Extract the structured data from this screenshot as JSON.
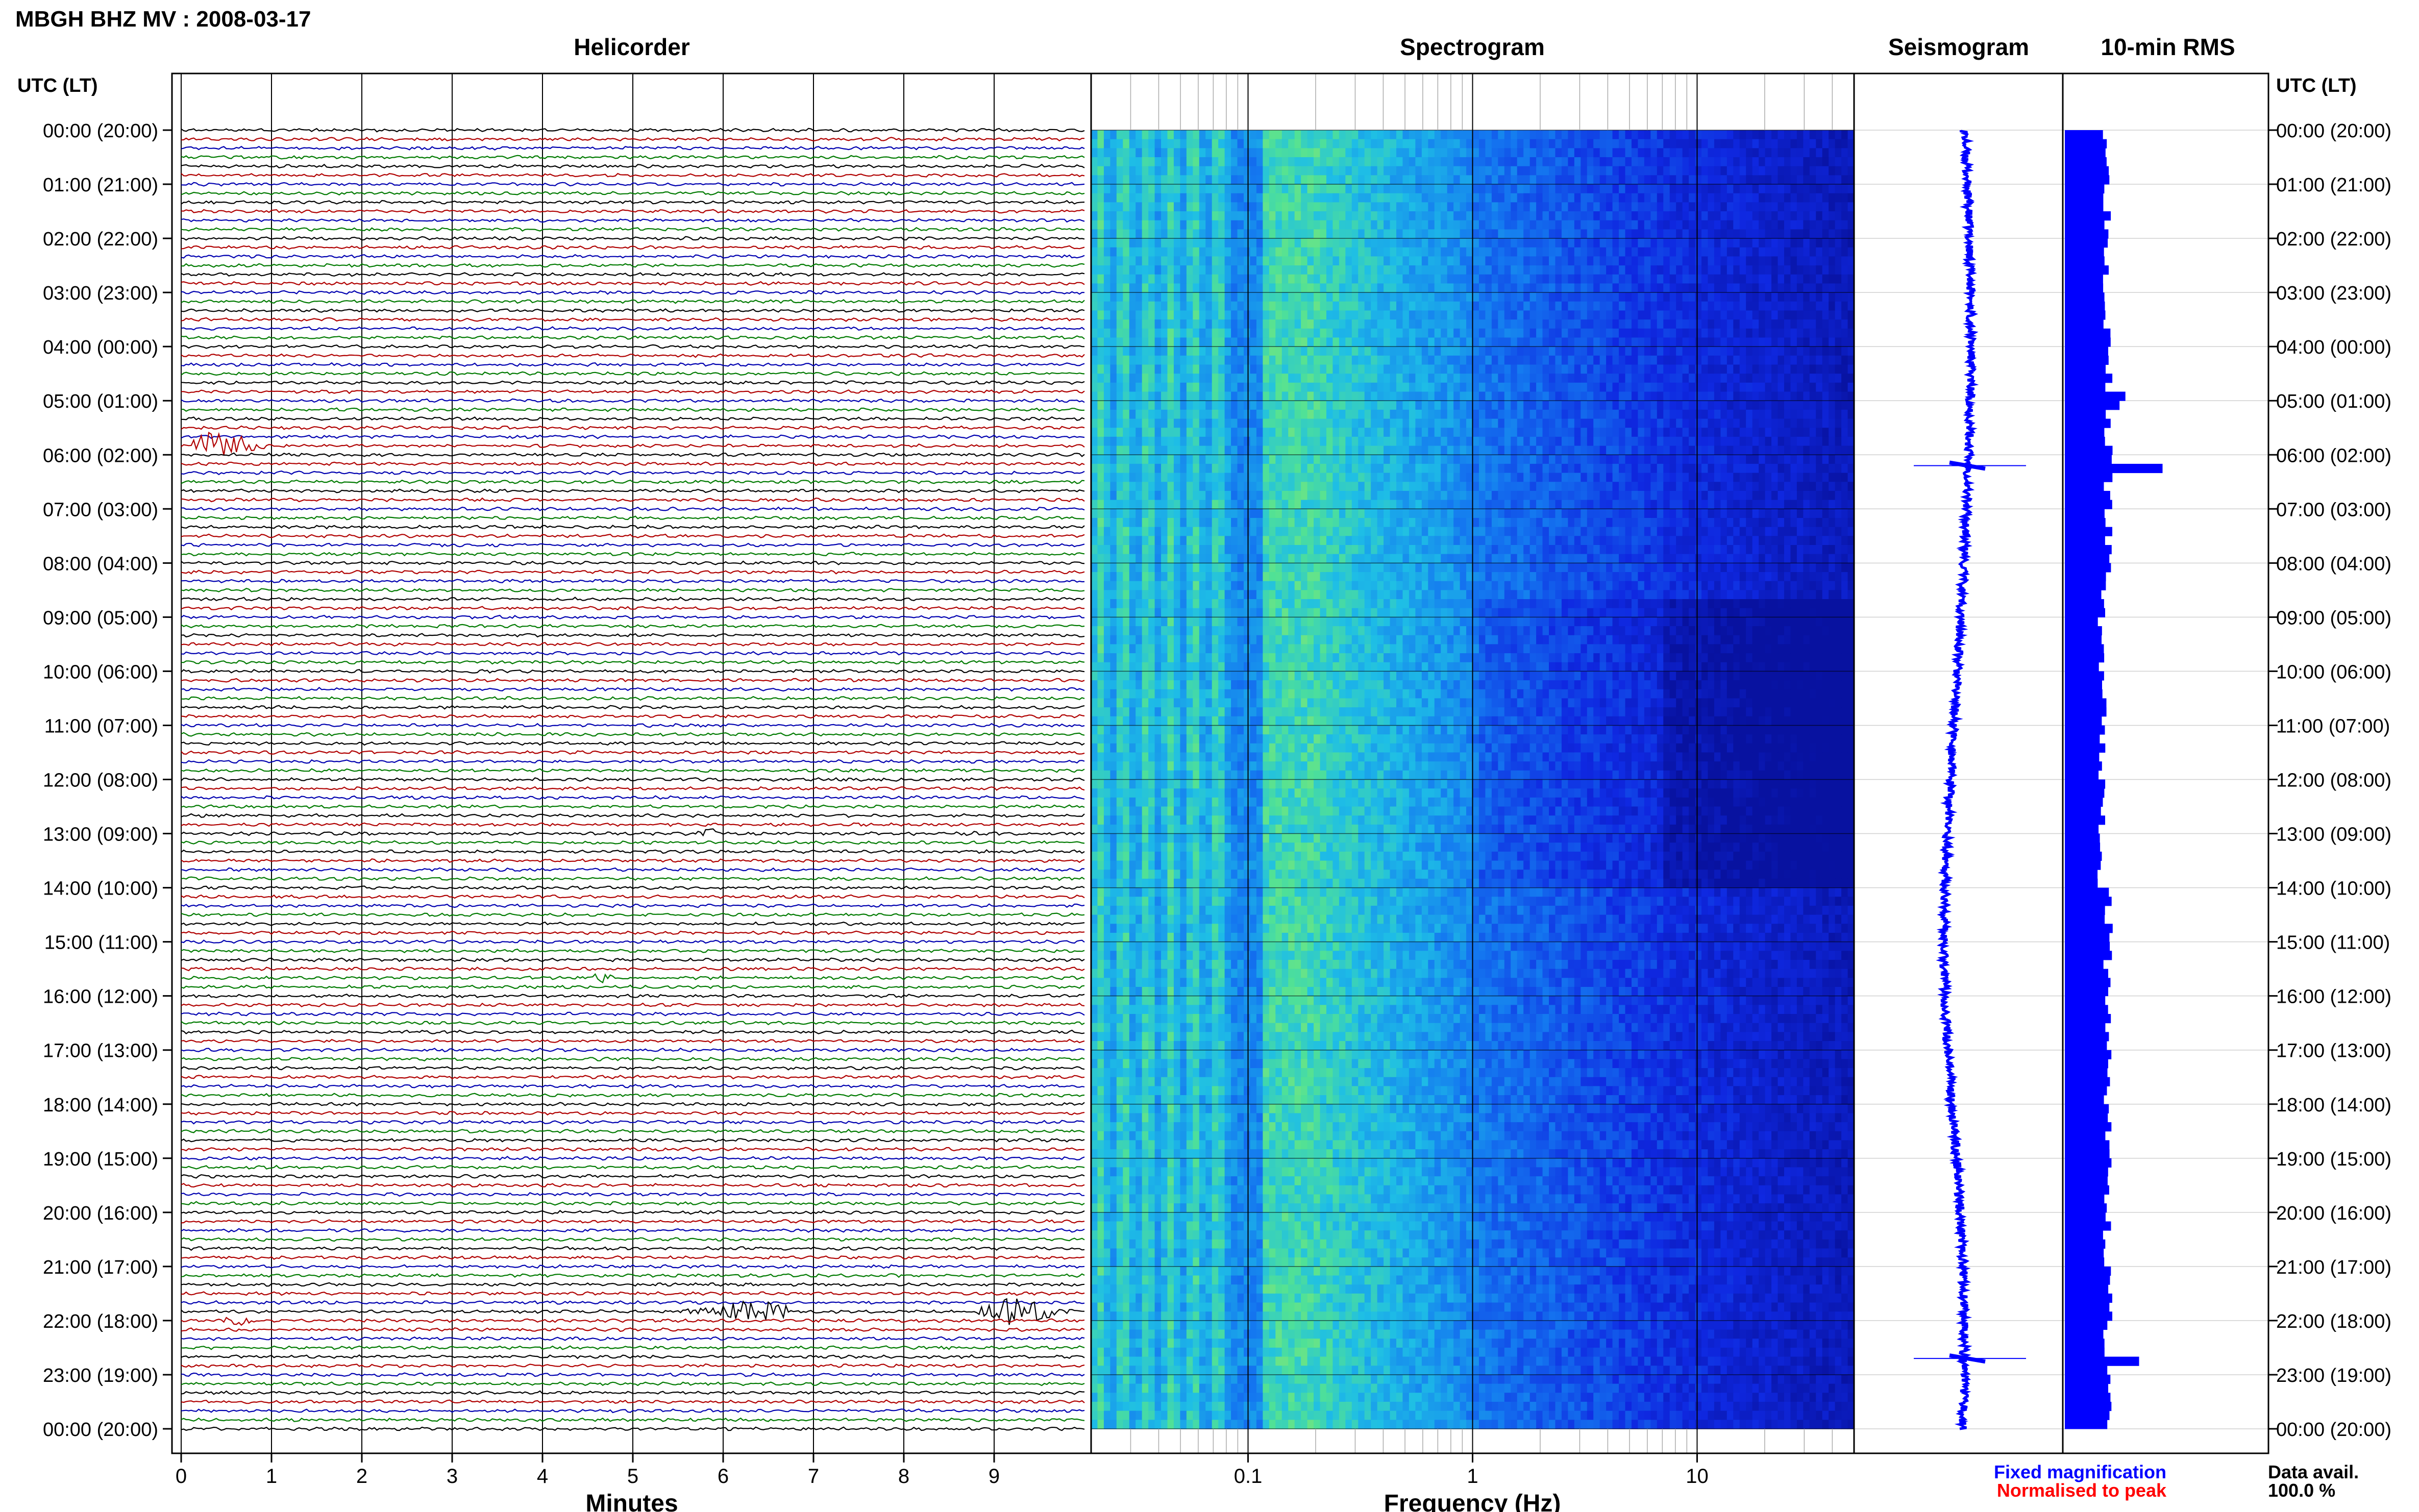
{
  "header": {
    "station_title": "MBGH BHZ MV : 2008-03-17"
  },
  "panel_titles": {
    "helicorder": "Helicorder",
    "spectrogram": "Spectrogram",
    "seismogram": "Seismogram",
    "rms": "10-min RMS"
  },
  "axis_labels": {
    "time_left": "UTC (LT)",
    "time_right": "UTC (LT)",
    "minutes": "Minutes",
    "frequency": "Frequency (Hz)"
  },
  "footer": {
    "fixed_magnification": "Fixed magnification",
    "normalised_to_peak": "Normalised to peak",
    "data_avail_label": "Data avail.",
    "data_avail_value": "100.0 %"
  },
  "colors": {
    "trace_cycle": [
      "#000000",
      "#b00000",
      "#0000b0",
      "#007a00"
    ],
    "seismogram": "#0000ff",
    "rms_bars": "#0000ff",
    "fixed_magnification_text": "#0000ff",
    "normalised_text": "#ff0000",
    "spectro_high": "#19e3c8",
    "spectro_mid": "#1aa3ee",
    "spectro_low": "#0a1fd0"
  },
  "chart_data": [
    {
      "type": "line",
      "name": "helicorder",
      "title": "Helicorder",
      "xlabel": "Minutes",
      "x_ticks": [
        0,
        1,
        2,
        3,
        4,
        5,
        6,
        7,
        8,
        9
      ],
      "xlim": [
        0,
        10
      ],
      "y_tick_labels": [
        "00:00 (20:00)",
        "01:00 (21:00)",
        "02:00 (22:00)",
        "03:00 (23:00)",
        "04:00 (00:00)",
        "05:00 (01:00)",
        "06:00 (02:00)",
        "07:00 (03:00)",
        "08:00 (04:00)",
        "09:00 (05:00)",
        "10:00 (06:00)",
        "11:00 (07:00)",
        "12:00 (08:00)",
        "13:00 (09:00)",
        "14:00 (10:00)",
        "15:00 (11:00)",
        "16:00 (12:00)",
        "17:00 (13:00)",
        "18:00 (14:00)",
        "19:00 (15:00)",
        "20:00 (16:00)",
        "21:00 (17:00)",
        "22:00 (18:00)",
        "23:00 (19:00)",
        "00:00 (20:00)"
      ],
      "lines_per_hour": 6,
      "total_lines": 144,
      "events": [
        {
          "line": 35,
          "start_min": 0.1,
          "end_min": 1.0,
          "peak_min": 0.45,
          "amplitude": 1.0,
          "color": "#b00000"
        },
        {
          "line": 131,
          "start_min": 5.2,
          "end_min": 6.7,
          "peak_min": 6.35,
          "amplitude": 0.7,
          "color": "#000000"
        },
        {
          "line": 131,
          "start_min": 8.7,
          "end_min": 9.9,
          "peak_min": 9.3,
          "amplitude": 0.8,
          "color": "#000000"
        },
        {
          "line": 132,
          "start_min": 0.4,
          "end_min": 1.0,
          "peak_min": 0.6,
          "amplitude": 0.25,
          "color": "#b00000"
        },
        {
          "line": 78,
          "start_min": 5.5,
          "end_min": 6.0,
          "peak_min": 5.8,
          "amplitude": 0.25,
          "color": "#000000"
        },
        {
          "line": 78,
          "start_min": 8.6,
          "end_min": 8.9,
          "peak_min": 8.75,
          "amplitude": 0.25,
          "color": "#000000"
        },
        {
          "line": 94,
          "start_min": 4.5,
          "end_min": 5.0,
          "peak_min": 4.7,
          "amplitude": 0.3,
          "color": "#007a00"
        }
      ]
    },
    {
      "type": "heatmap",
      "name": "spectrogram",
      "title": "Spectrogram",
      "xlabel": "Frequency (Hz)",
      "x_scale": "log",
      "xlim": [
        0.02,
        50
      ],
      "x_tick_labels": [
        {
          "value": 0.1,
          "label": "0.1"
        },
        {
          "value": 1,
          "label": "1"
        },
        {
          "value": 10,
          "label": "10"
        }
      ],
      "hours": 24
    },
    {
      "type": "line",
      "name": "seismogram",
      "title": "Seismogram",
      "hours": 24,
      "events_hour": [
        6.2,
        22.7
      ],
      "drift_peak_hour": 16.3
    },
    {
      "type": "bar",
      "name": "10-min RMS",
      "title": "10-min RMS",
      "bars": 144,
      "baseline_relative": 0.22,
      "spikes": [
        {
          "bar": 37,
          "value": 0.5
        },
        {
          "bar": 136,
          "value": 0.38
        },
        {
          "bar": 29,
          "value": 0.31
        },
        {
          "bar": 30,
          "value": 0.28
        }
      ]
    }
  ]
}
